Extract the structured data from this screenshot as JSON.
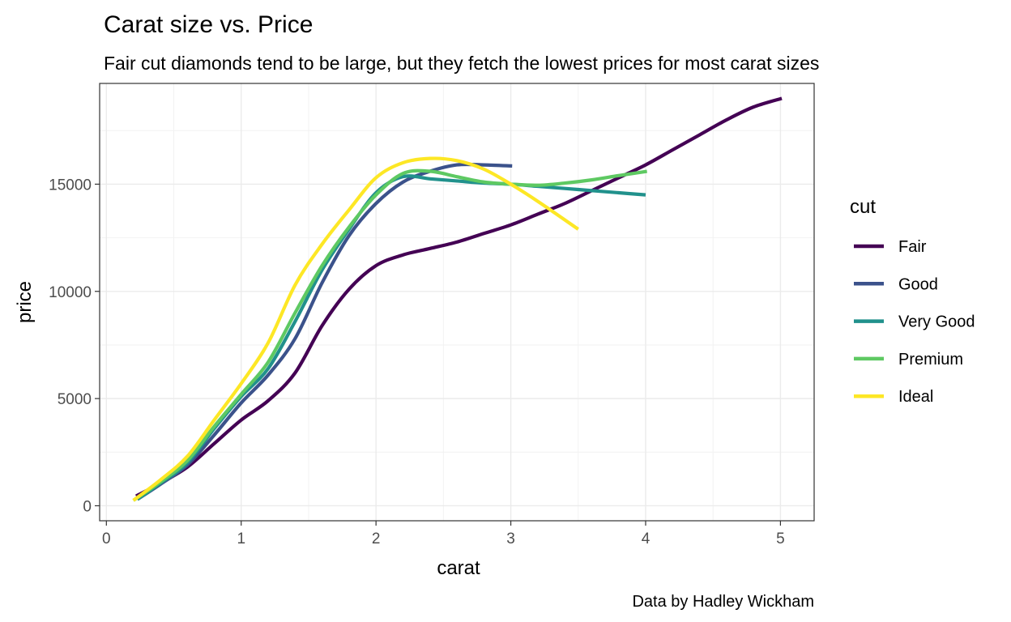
{
  "chart_data": {
    "type": "line",
    "title": "Carat size vs. Price",
    "subtitle": "Fair cut diamonds tend to be large, but they fetch the lowest prices for most carat sizes",
    "xlabel": "carat",
    "ylabel": "price",
    "caption": "Data by Hadley Wickham",
    "xlim": [
      -0.05,
      5.25
    ],
    "ylim": [
      -700,
      19700
    ],
    "x_ticks": [
      0,
      1,
      2,
      3,
      4,
      5
    ],
    "y_ticks": [
      0,
      5000,
      10000,
      15000
    ],
    "x_tick_labels": [
      "0",
      "1",
      "2",
      "3",
      "4",
      "5"
    ],
    "y_tick_labels": [
      "0",
      "5000",
      "10000",
      "15000"
    ],
    "grid": true,
    "legend": {
      "title": "cut",
      "position": "right"
    },
    "series": [
      {
        "name": "Fair",
        "color": "#440154",
        "x": [
          0.22,
          0.4,
          0.6,
          0.8,
          1.0,
          1.2,
          1.4,
          1.6,
          1.8,
          2.0,
          2.2,
          2.4,
          2.6,
          2.8,
          3.0,
          3.2,
          3.4,
          3.6,
          3.8,
          4.0,
          4.2,
          4.4,
          4.6,
          4.8,
          5.01
        ],
        "y": [
          450,
          1050,
          1800,
          2900,
          4000,
          4900,
          6200,
          8400,
          10100,
          11200,
          11700,
          12000,
          12300,
          12700,
          13100,
          13600,
          14100,
          14700,
          15300,
          15900,
          16600,
          17300,
          18000,
          18600,
          19000
        ]
      },
      {
        "name": "Good",
        "color": "#3b528b",
        "x": [
          0.23,
          0.4,
          0.6,
          0.8,
          1.0,
          1.2,
          1.4,
          1.6,
          1.8,
          2.0,
          2.2,
          2.4,
          2.6,
          2.8,
          3.01
        ],
        "y": [
          300,
          1000,
          1900,
          3300,
          4800,
          6100,
          7800,
          10400,
          12600,
          14100,
          15100,
          15600,
          15900,
          15900,
          15850
        ]
      },
      {
        "name": "Very Good",
        "color": "#21918c",
        "x": [
          0.23,
          0.4,
          0.6,
          0.8,
          1.0,
          1.2,
          1.4,
          1.6,
          1.8,
          2.0,
          2.2,
          2.4,
          2.6,
          2.8,
          3.0,
          3.2,
          3.4,
          3.6,
          3.8,
          4.0
        ],
        "y": [
          300,
          1050,
          2000,
          3600,
          5100,
          6400,
          8600,
          11000,
          12900,
          14600,
          15350,
          15250,
          15150,
          15050,
          15000,
          14900,
          14800,
          14700,
          14600,
          14500
        ]
      },
      {
        "name": "Premium",
        "color": "#5ec962",
        "x": [
          0.2,
          0.4,
          0.6,
          0.8,
          1.0,
          1.2,
          1.4,
          1.6,
          1.8,
          2.0,
          2.2,
          2.4,
          2.6,
          2.8,
          3.0,
          3.2,
          3.4,
          3.6,
          3.8,
          4.01
        ],
        "y": [
          250,
          1100,
          2100,
          3700,
          5200,
          6700,
          9000,
          11200,
          13000,
          14500,
          15500,
          15600,
          15350,
          15100,
          15000,
          14950,
          15050,
          15200,
          15400,
          15600
        ]
      },
      {
        "name": "Ideal",
        "color": "#fde725",
        "x": [
          0.2,
          0.4,
          0.6,
          0.8,
          1.0,
          1.2,
          1.4,
          1.6,
          1.8,
          2.0,
          2.2,
          2.4,
          2.6,
          2.8,
          3.0,
          3.2,
          3.5
        ],
        "y": [
          250,
          1200,
          2300,
          4000,
          5700,
          7600,
          10300,
          12200,
          13800,
          15300,
          16000,
          16200,
          16100,
          15700,
          15000,
          14200,
          12900
        ]
      }
    ]
  }
}
